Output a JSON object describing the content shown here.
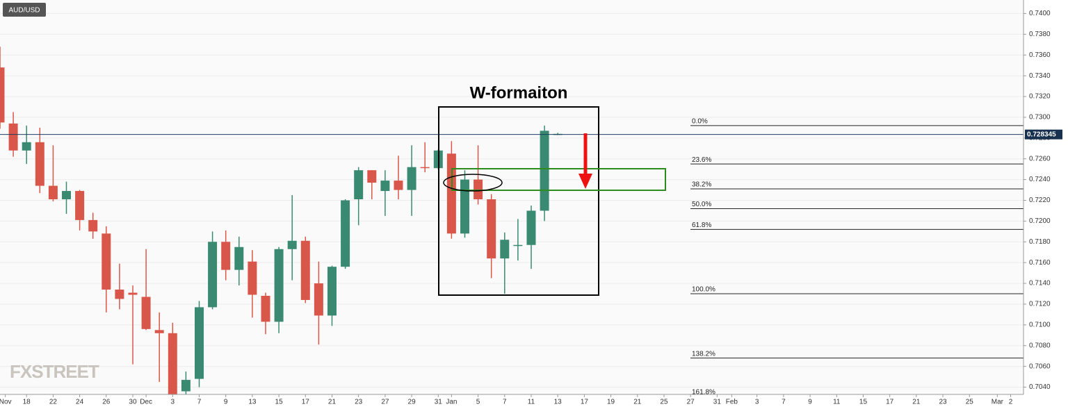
{
  "chart_data": {
    "type": "candlestick",
    "symbol": "AUD/USD",
    "watermark": "FXSTREET",
    "annotation": "W-formaiton",
    "up_color": "#3a8a72",
    "down_color": "#d9574a",
    "x": [
      0,
      1,
      2,
      3,
      4,
      5,
      6,
      7,
      8,
      9,
      10,
      11,
      12,
      13,
      14,
      15,
      16,
      17,
      18,
      19,
      20,
      21,
      22,
      23,
      24,
      25,
      26,
      27,
      28,
      29,
      30,
      31,
      32,
      33,
      34,
      35,
      36,
      37,
      38,
      39,
      40,
      41,
      42
    ],
    "open": [
      0.7348,
      0.7294,
      0.7268,
      0.7276,
      0.7234,
      0.7221,
      0.7229,
      0.7201,
      0.7188,
      0.7134,
      0.7131,
      0.7127,
      0.7095,
      0.7092,
      0.7036,
      0.7048,
      0.7117,
      0.718,
      0.7153,
      0.7161,
      0.7128,
      0.7103,
      0.7173,
      0.7181,
      0.714,
      0.7109,
      0.7156,
      0.7221,
      0.7249,
      0.7229,
      0.7239,
      0.723,
      0.7252,
      0.7251,
      0.7265,
      0.7188,
      0.724,
      0.7221,
      0.7164,
      0.7176,
      0.7177,
      0.721,
      0.7284
    ],
    "high": [
      0.7368,
      0.7305,
      0.7292,
      0.729,
      0.7273,
      0.7238,
      0.723,
      0.7208,
      0.7195,
      0.7159,
      0.7138,
      0.7173,
      0.7112,
      0.7102,
      0.7055,
      0.7123,
      0.719,
      0.7191,
      0.7185,
      0.7172,
      0.7131,
      0.7175,
      0.7225,
      0.7185,
      0.7161,
      0.7157,
      0.7221,
      0.7252,
      0.7249,
      0.7249,
      0.7263,
      0.7273,
      0.7276,
      0.7269,
      0.7277,
      0.7249,
      0.7273,
      0.7226,
      0.7189,
      0.7202,
      0.7215,
      0.7292,
      0.7285
    ],
    "low": [
      0.7289,
      0.7262,
      0.7255,
      0.7227,
      0.7219,
      0.7207,
      0.7191,
      0.7183,
      0.7112,
      0.7115,
      0.7062,
      0.7095,
      0.7045,
      0.703,
      0.7033,
      0.704,
      0.7115,
      0.7143,
      0.7138,
      0.7107,
      0.7091,
      0.7092,
      0.7143,
      0.7121,
      0.7081,
      0.7099,
      0.7154,
      0.7196,
      0.7221,
      0.7205,
      0.7221,
      0.7205,
      0.7247,
      0.725,
      0.7183,
      0.7184,
      0.7216,
      0.7145,
      0.713,
      0.7162,
      0.7154,
      0.72,
      0.7283
    ],
    "close": [
      0.7295,
      0.7268,
      0.7276,
      0.7234,
      0.7221,
      0.7229,
      0.7201,
      0.719,
      0.7134,
      0.7125,
      0.7129,
      0.7096,
      0.7092,
      0.7033,
      0.7047,
      0.7117,
      0.718,
      0.7153,
      0.7175,
      0.7129,
      0.7103,
      0.7173,
      0.7181,
      0.7124,
      0.7109,
      0.7156,
      0.722,
      0.7249,
      0.7237,
      0.7239,
      0.723,
      0.7252,
      0.7251,
      0.7268,
      0.7188,
      0.724,
      0.7221,
      0.7164,
      0.7182,
      0.7177,
      0.721,
      0.7287,
      0.7284
    ],
    "last_price": 0.728345,
    "fib_levels": [
      {
        "value": 0.7292,
        "label": "0.0%"
      },
      {
        "value": 0.7255,
        "label": "23.6%"
      },
      {
        "value": 0.7231,
        "label": "38.2%"
      },
      {
        "value": 0.7212,
        "label": "50.0%"
      },
      {
        "value": 0.7192,
        "label": "61.8%"
      },
      {
        "value": 0.713,
        "label": "100.0%"
      },
      {
        "value": 0.7068,
        "label": "138.2%"
      },
      {
        "value": 0.7031,
        "label": "161.8%"
      }
    ],
    "xlim": [
      0,
      77.07
    ],
    "ylim": [
      0.7033,
      0.7413
    ],
    "xticks": [
      {
        "value": 0.4,
        "label": "Nov"
      },
      {
        "value": 2,
        "label": "18"
      },
      {
        "value": 4,
        "label": "22"
      },
      {
        "value": 6,
        "label": "24"
      },
      {
        "value": 8,
        "label": "26"
      },
      {
        "value": 10,
        "label": "30"
      },
      {
        "value": 11,
        "label": "Dec"
      },
      {
        "value": 13,
        "label": "3"
      },
      {
        "value": 15,
        "label": "7"
      },
      {
        "value": 17,
        "label": "9"
      },
      {
        "value": 19,
        "label": "13"
      },
      {
        "value": 21,
        "label": "15"
      },
      {
        "value": 23,
        "label": "17"
      },
      {
        "value": 25,
        "label": "21"
      },
      {
        "value": 27,
        "label": "23"
      },
      {
        "value": 29,
        "label": "27"
      },
      {
        "value": 31,
        "label": "29"
      },
      {
        "value": 33,
        "label": "31"
      },
      {
        "value": 34,
        "label": "Jan"
      },
      {
        "value": 36,
        "label": "5"
      },
      {
        "value": 38,
        "label": "7"
      },
      {
        "value": 40,
        "label": "11"
      },
      {
        "value": 42,
        "label": "13"
      },
      {
        "value": 44,
        "label": "17"
      },
      {
        "value": 46,
        "label": "19"
      },
      {
        "value": 48,
        "label": "21"
      },
      {
        "value": 50,
        "label": "25"
      },
      {
        "value": 52,
        "label": "27"
      },
      {
        "value": 54,
        "label": "31"
      },
      {
        "value": 55.1,
        "label": "Feb"
      },
      {
        "value": 57,
        "label": "3"
      },
      {
        "value": 59,
        "label": "7"
      },
      {
        "value": 61,
        "label": "9"
      },
      {
        "value": 63,
        "label": "11"
      },
      {
        "value": 65,
        "label": "15"
      },
      {
        "value": 67,
        "label": "17"
      },
      {
        "value": 69,
        "label": "21"
      },
      {
        "value": 71,
        "label": "23"
      },
      {
        "value": 73,
        "label": "25"
      },
      {
        "value": 75.1,
        "label": "Mar"
      },
      {
        "value": 76.1,
        "label": "2"
      }
    ],
    "yticks": [
      {
        "value": 0.704,
        "label": "0.7040"
      },
      {
        "value": 0.706,
        "label": "0.7060"
      },
      {
        "value": 0.708,
        "label": "0.7080"
      },
      {
        "value": 0.71,
        "label": "0.7100"
      },
      {
        "value": 0.712,
        "label": "0.7120"
      },
      {
        "value": 0.714,
        "label": "0.7140"
      },
      {
        "value": 0.716,
        "label": "0.7160"
      },
      {
        "value": 0.718,
        "label": "0.7180"
      },
      {
        "value": 0.72,
        "label": "0.7200"
      },
      {
        "value": 0.722,
        "label": "0.7220"
      },
      {
        "value": 0.724,
        "label": "0.7240"
      },
      {
        "value": 0.726,
        "label": "0.7260"
      },
      {
        "value": 0.728,
        "label": "0.7280"
      },
      {
        "value": 0.73,
        "label": "0.7300"
      },
      {
        "value": 0.732,
        "label": "0.7320"
      },
      {
        "value": 0.734,
        "label": "0.7340"
      },
      {
        "value": 0.736,
        "label": "0.7360"
      },
      {
        "value": 0.738,
        "label": "0.7380"
      },
      {
        "value": 0.74,
        "label": "0.7400"
      }
    ],
    "grid": true
  }
}
